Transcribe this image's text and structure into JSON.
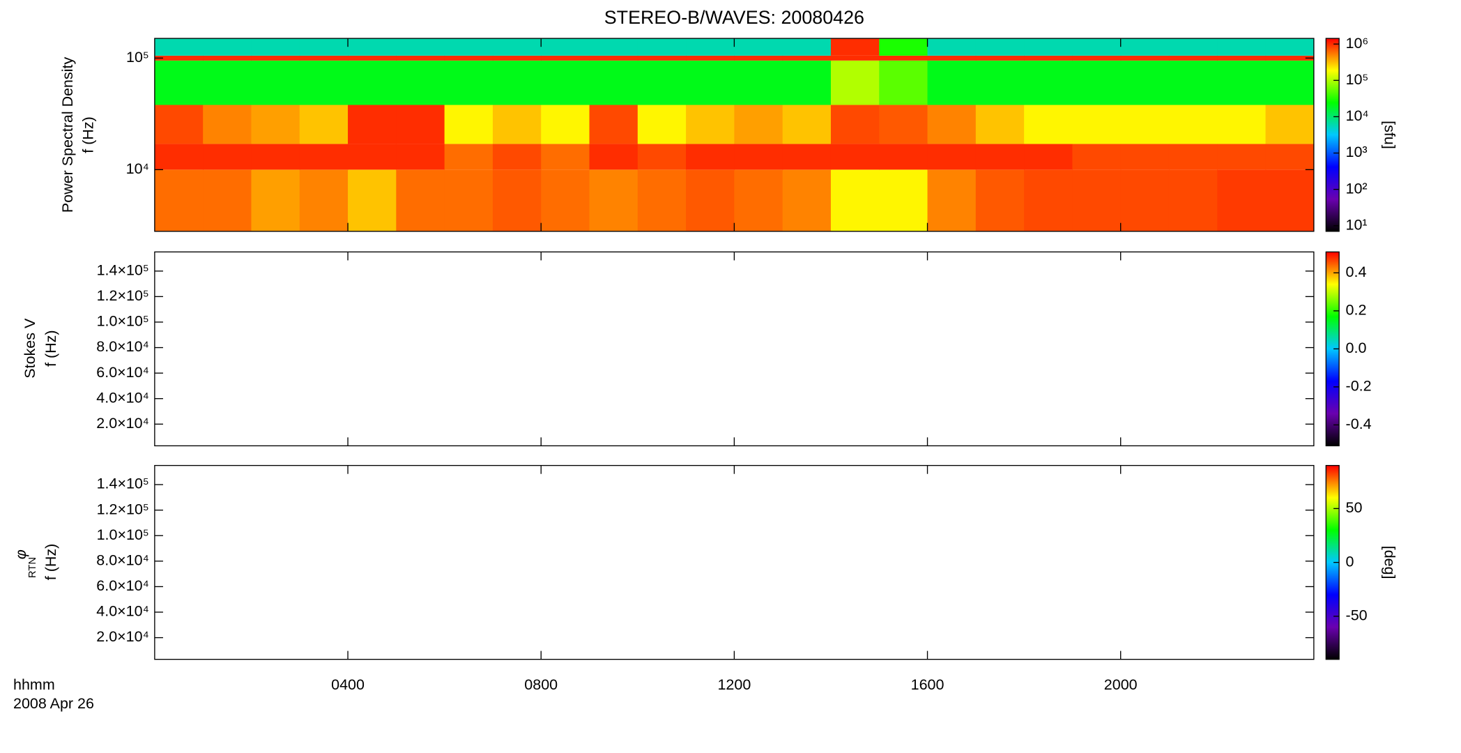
{
  "chart_data": [
    {
      "type": "heatmap",
      "title": "STEREO-B/WAVES: 20080426",
      "ylabel": [
        "Power Spectral Density",
        "f (Hz)"
      ],
      "ylog": true,
      "ylim": [
        2800,
        150000
      ],
      "yticks": [
        {
          "value": 10000,
          "label": "10⁴"
        },
        {
          "value": 100000,
          "label": "10⁵"
        }
      ],
      "xlim": [
        0,
        24
      ],
      "xticks": [
        4,
        8,
        12,
        16,
        20
      ],
      "x_edges": [
        0,
        1,
        2,
        3,
        4,
        5,
        6,
        7,
        8,
        9,
        10,
        11,
        12,
        13,
        14,
        15,
        16,
        17,
        18,
        19,
        20,
        21,
        22,
        23,
        24
      ],
      "y_edges": [
        2800,
        10000,
        17000,
        38000,
        95000,
        105000,
        150000
      ],
      "z": [
        [
          600000,
          600000,
          400000,
          500000,
          300000,
          600000,
          600000,
          700000,
          600000,
          500000,
          600000,
          700000,
          600000,
          500000,
          200000,
          200000,
          500000,
          700000,
          800000,
          800000,
          800000,
          800000,
          900000,
          900000
        ],
        [
          1000000,
          1000000,
          1000000,
          1000000,
          1000000,
          1000000,
          600000,
          800000,
          600000,
          1000000,
          800000,
          1000000,
          1000000,
          1000000,
          1000000,
          1000000,
          1000000,
          1000000,
          1000000,
          800000,
          800000,
          800000,
          800000,
          800000
        ],
        [
          800000,
          500000,
          400000,
          300000,
          1000000,
          1000000,
          200000,
          300000,
          200000,
          800000,
          200000,
          300000,
          400000,
          300000,
          800000,
          700000,
          500000,
          300000,
          200000,
          200000,
          200000,
          200000,
          200000,
          300000
        ],
        [
          20000,
          20000,
          20000,
          20000,
          20000,
          20000,
          20000,
          20000,
          20000,
          20000,
          20000,
          20000,
          20000,
          20000,
          100000,
          50000,
          20000,
          20000,
          20000,
          20000,
          20000,
          20000,
          20000,
          20000
        ],
        [
          1000000,
          1000000,
          1000000,
          1000000,
          1000000,
          1000000,
          1000000,
          1000000,
          1000000,
          1000000,
          1000000,
          1000000,
          1000000,
          1000000,
          1000000,
          1000000,
          1000000,
          1000000,
          1000000,
          1000000,
          1000000,
          1000000,
          1000000,
          1000000
        ],
        [
          6000,
          6000,
          6000,
          6000,
          6000,
          6000,
          6000,
          6000,
          6000,
          6000,
          6000,
          6000,
          6000,
          6000,
          1000000,
          30000,
          6000,
          6000,
          6000,
          6000,
          6000,
          6000,
          6000,
          6000
        ]
      ],
      "colormap": [
        "#000000",
        "#6a00b0",
        "#0000ff",
        "#00c8ff",
        "#00ff00",
        "#ffff00",
        "#ff0000"
      ],
      "clog": true,
      "clim": [
        7,
        1430000
      ],
      "cticks": [
        {
          "value": 10,
          "label": "10¹"
        },
        {
          "value": 100,
          "label": "10²"
        },
        {
          "value": 1000,
          "label": "10³"
        },
        {
          "value": 10000,
          "label": "10⁴"
        },
        {
          "value": 100000,
          "label": "10⁵"
        },
        {
          "value": 1000000,
          "label": "10⁶"
        }
      ],
      "clabel": "[sfu]"
    },
    {
      "type": "heatmap",
      "ylabel": [
        "Stokes V",
        "f (Hz)"
      ],
      "ylog": false,
      "ylim": [
        3000,
        155000
      ],
      "yticks": [
        {
          "value": 20000,
          "label": "2.0×10⁴"
        },
        {
          "value": 40000,
          "label": "4.0×10⁴"
        },
        {
          "value": 60000,
          "label": "6.0×10⁴"
        },
        {
          "value": 80000,
          "label": "8.0×10⁴"
        },
        {
          "value": 100000,
          "label": "1.0×10⁵"
        },
        {
          "value": 120000,
          "label": "1.2×10⁵"
        },
        {
          "value": 140000,
          "label": "1.4×10⁵"
        }
      ],
      "xlim": [
        0,
        24
      ],
      "xticks": [
        4,
        8,
        12,
        16,
        20
      ],
      "colormap": [
        "#000000",
        "#6a00b0",
        "#0000ff",
        "#00c8ff",
        "#00ff00",
        "#ffff00",
        "#ff0000"
      ],
      "clog": false,
      "clim": [
        -0.51,
        0.51
      ],
      "cticks": [
        -0.4,
        -0.2,
        {
          "value": 0,
          "label": "0.0"
        },
        0.2,
        0.4
      ]
    },
    {
      "type": "heatmap",
      "ylabel_symbol": "φ",
      "ylabel_sub": "RTN",
      "ylabel": [
        "f (Hz)"
      ],
      "ylog": false,
      "ylim": [
        3000,
        155000
      ],
      "yticks": [
        {
          "value": 20000,
          "label": "2.0×10⁴"
        },
        {
          "value": 40000,
          "label": "4.0×10⁴"
        },
        {
          "value": 60000,
          "label": "6.0×10⁴"
        },
        {
          "value": 80000,
          "label": "8.0×10⁴"
        },
        {
          "value": 100000,
          "label": "1.0×10⁵"
        },
        {
          "value": 120000,
          "label": "1.2×10⁵"
        },
        {
          "value": 140000,
          "label": "1.4×10⁵"
        }
      ],
      "xlim": [
        0,
        24
      ],
      "xticks": [
        {
          "value": 4,
          "label": "0400"
        },
        {
          "value": 8,
          "label": "0800"
        },
        {
          "value": 12,
          "label": "1200"
        },
        {
          "value": 16,
          "label": "1600"
        },
        {
          "value": 20,
          "label": "2000"
        }
      ],
      "xlabel": "hhmm",
      "date": "2008 Apr 26",
      "colormap": [
        "#000000",
        "#6a00b0",
        "#0000ff",
        "#00c8ff",
        "#00ff00",
        "#ffff00",
        "#ff0000"
      ],
      "clog": false,
      "clim": [
        -90,
        90
      ],
      "cticks": [
        -50,
        0,
        50
      ],
      "clabel": "[deg]"
    }
  ]
}
